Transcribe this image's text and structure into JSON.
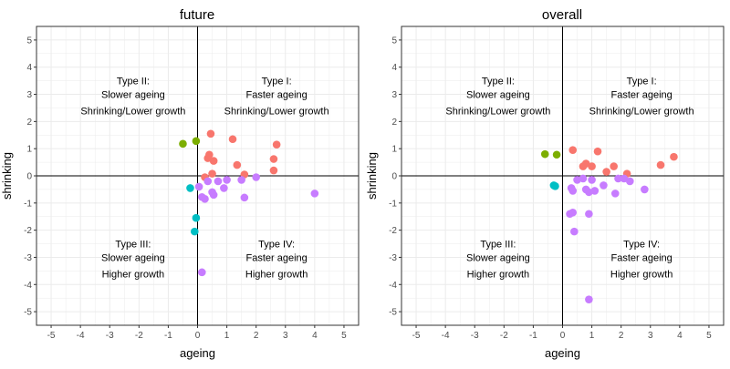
{
  "colors": {
    "red": "#F8766D",
    "olive": "#7CAE00",
    "teal": "#00BFC4",
    "purple": "#C77CFF",
    "grid": "#EBEBEB",
    "axis_line": "#000000",
    "panel_border": "#333333",
    "tick_text": "#4D4D4D"
  },
  "shared": {
    "xlabel": "ageing",
    "ylabel": "shrinking",
    "xlim": [
      -5.5,
      5.5
    ],
    "ylim": [
      -5.5,
      5.5
    ],
    "ticks": [
      -5,
      -4,
      -3,
      -2,
      -1,
      0,
      1,
      2,
      3,
      4,
      5
    ],
    "quadrant_labels": [
      {
        "x": -2.2,
        "y": [
          3.5,
          3.0,
          2.4
        ],
        "lines": [
          "Type II:",
          "Slower ageing",
          "Shrinking/Lower growth"
        ]
      },
      {
        "x": 2.7,
        "y": [
          3.5,
          3.0,
          2.4
        ],
        "lines": [
          "Type I:",
          "Faster ageing",
          "Shrinking/Lower growth"
        ]
      },
      {
        "x": -2.2,
        "y": [
          -2.5,
          -3.0,
          -3.6
        ],
        "lines": [
          "Type III:",
          "Slower ageing",
          "Higher growth"
        ]
      },
      {
        "x": 2.7,
        "y": [
          -2.5,
          -3.0,
          -3.6
        ],
        "lines": [
          "Type IV:",
          "Faster ageing",
          "Higher growth"
        ]
      }
    ]
  },
  "chart_data": [
    {
      "type": "scatter",
      "title": "future",
      "xlabel": "ageing",
      "ylabel": "shrinking",
      "xlim": [
        -5.5,
        5.5
      ],
      "ylim": [
        -5.5,
        5.5
      ],
      "grid": true,
      "series": [
        {
          "color": "red",
          "points": [
            [
              0.45,
              1.55
            ],
            [
              0.35,
              0.65
            ],
            [
              0.4,
              0.78
            ],
            [
              0.55,
              0.55
            ],
            [
              1.2,
              1.35
            ],
            [
              0.5,
              0.08
            ],
            [
              0.25,
              -0.05
            ],
            [
              1.35,
              0.4
            ],
            [
              1.6,
              0.05
            ],
            [
              2.6,
              0.62
            ],
            [
              2.6,
              0.2
            ],
            [
              2.7,
              1.15
            ]
          ]
        },
        {
          "color": "olive",
          "points": [
            [
              -0.5,
              1.18
            ],
            [
              -0.05,
              1.28
            ]
          ]
        },
        {
          "color": "teal",
          "points": [
            [
              -0.25,
              -0.45
            ],
            [
              -0.05,
              -1.55
            ],
            [
              -0.1,
              -2.05
            ]
          ]
        },
        {
          "color": "purple",
          "points": [
            [
              0.05,
              -0.4
            ],
            [
              0.15,
              -0.78
            ],
            [
              0.25,
              -0.85
            ],
            [
              0.35,
              -0.2
            ],
            [
              0.5,
              -0.6
            ],
            [
              0.55,
              -0.7
            ],
            [
              0.7,
              -0.2
            ],
            [
              0.9,
              -0.45
            ],
            [
              1.0,
              -0.15
            ],
            [
              1.5,
              -0.15
            ],
            [
              1.6,
              -0.8
            ],
            [
              2.0,
              -0.05
            ],
            [
              4.0,
              -0.65
            ],
            [
              0.15,
              -3.55
            ]
          ]
        }
      ]
    },
    {
      "type": "scatter",
      "title": "overall",
      "xlabel": "ageing",
      "ylabel": "shrinking",
      "xlim": [
        -5.5,
        5.5
      ],
      "ylim": [
        -5.5,
        5.5
      ],
      "grid": true,
      "series": [
        {
          "color": "red",
          "points": [
            [
              0.35,
              0.95
            ],
            [
              0.7,
              0.35
            ],
            [
              0.8,
              0.45
            ],
            [
              1.0,
              0.35
            ],
            [
              1.2,
              0.9
            ],
            [
              1.5,
              0.15
            ],
            [
              1.75,
              0.35
            ],
            [
              2.2,
              0.08
            ],
            [
              3.35,
              0.4
            ],
            [
              3.8,
              0.7
            ]
          ]
        },
        {
          "color": "olive",
          "points": [
            [
              -0.6,
              0.8
            ],
            [
              -0.2,
              0.78
            ]
          ]
        },
        {
          "color": "teal",
          "points": [
            [
              -0.3,
              -0.35
            ],
            [
              -0.25,
              -0.38
            ]
          ]
        },
        {
          "color": "purple",
          "points": [
            [
              0.3,
              -0.45
            ],
            [
              0.35,
              -0.55
            ],
            [
              0.5,
              -0.15
            ],
            [
              0.7,
              -0.1
            ],
            [
              0.8,
              -0.5
            ],
            [
              0.9,
              -0.6
            ],
            [
              1.0,
              -0.15
            ],
            [
              1.1,
              -0.55
            ],
            [
              1.4,
              -0.35
            ],
            [
              1.8,
              -0.65
            ],
            [
              1.9,
              -0.1
            ],
            [
              2.1,
              -0.1
            ],
            [
              2.3,
              -0.2
            ],
            [
              2.8,
              -0.5
            ],
            [
              0.25,
              -1.4
            ],
            [
              0.35,
              -1.35
            ],
            [
              0.9,
              -1.4
            ],
            [
              0.4,
              -2.05
            ],
            [
              0.9,
              -4.55
            ]
          ]
        }
      ]
    }
  ]
}
